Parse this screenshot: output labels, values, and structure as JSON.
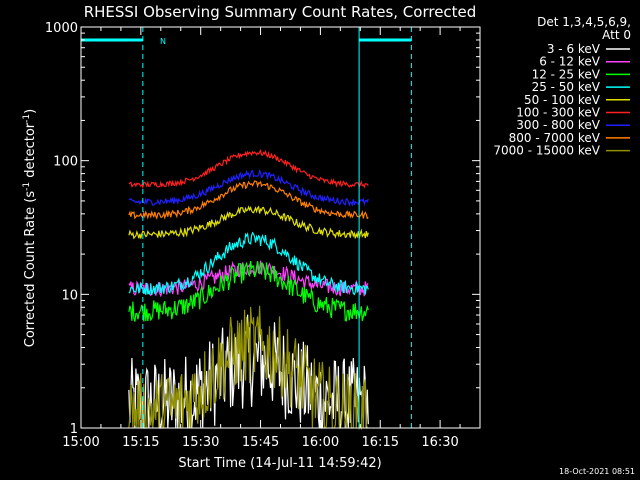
{
  "chart_data": {
    "type": "line",
    "title": "RHESSI Observing Summary Count Rates, Corrected",
    "xlabel": "Start Time (14-Jul-11 14:59:42)",
    "ylabel_main": "Corrected Count Rate (s",
    "ylabel_sup1": "-1",
    "ylabel_mid": " detector",
    "ylabel_sup2": "-1",
    "ylabel_end": ")",
    "y_scale": "log",
    "ylim": [
      1,
      1000
    ],
    "xlim_minutes": [
      0,
      100
    ],
    "x_tick_labels": [
      "15:00",
      "15:15",
      "15:30",
      "15:45",
      "16:00",
      "16:15",
      "16:30"
    ],
    "x_tick_minutes": [
      0,
      15,
      30,
      45,
      60,
      75,
      90
    ],
    "y_tick_labels": [
      "1",
      "10",
      "100",
      "1000"
    ],
    "y_tick_values": [
      1,
      10,
      100,
      1000
    ],
    "legend_header": [
      "Det 1,3,4,5,6,9,",
      "Att 0"
    ],
    "legend_placement": "right",
    "marker_label": "N",
    "timestamp": "18-Oct-2021 08:51",
    "data_window_minutes": [
      12,
      72
    ],
    "vertical_lines_minutes": [
      {
        "x": 0,
        "style": "solid"
      },
      {
        "x": 15.5,
        "style": "dashed"
      },
      {
        "x": 69.7,
        "style": "solid"
      },
      {
        "x": 82.8,
        "style": "dashed"
      }
    ],
    "night_bars": [
      {
        "from": 0,
        "to": 15.5,
        "y": 800
      },
      {
        "from": 69.7,
        "to": 82.8,
        "y": 800
      }
    ],
    "series": [
      {
        "name": "3 - 6 keV",
        "color": "#ffffff",
        "base": 1.5,
        "peak": 3.2,
        "noise": 0.35
      },
      {
        "name": "6 - 12 keV",
        "color": "#ff40ff",
        "base": 11,
        "peak": 16,
        "noise": 0.06
      },
      {
        "name": "12 - 25 keV",
        "color": "#00ff00",
        "base": 7.5,
        "peak": 15,
        "noise": 0.08
      },
      {
        "name": "25 - 50 keV",
        "color": "#00ffff",
        "base": 11,
        "peak": 26,
        "noise": 0.05
      },
      {
        "name": "50 - 100 keV",
        "color": "#e0e000",
        "base": 28,
        "peak": 43,
        "noise": 0.03
      },
      {
        "name": "100 - 300 keV",
        "color": "#ff2020",
        "base": 66,
        "peak": 115,
        "noise": 0.02
      },
      {
        "name": "300 - 800 keV",
        "color": "#2020ff",
        "base": 49,
        "peak": 80,
        "noise": 0.025
      },
      {
        "name": "800 - 7000 keV",
        "color": "#ff8000",
        "base": 39,
        "peak": 67,
        "noise": 0.025
      },
      {
        "name": "7000 - 15000 keV",
        "color": "#909000",
        "base": 1.3,
        "peak": 4.2,
        "noise": 0.3
      }
    ]
  }
}
